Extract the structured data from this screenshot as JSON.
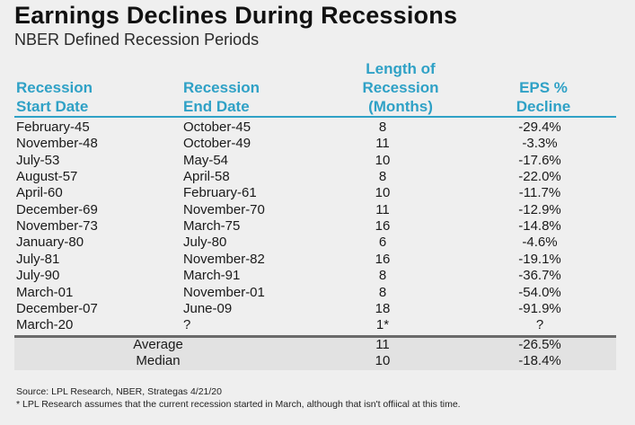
{
  "title": "Earnings Declines During Recessions",
  "subtitle": "NBER Defined Recession Periods",
  "headers": {
    "start": [
      "Recession",
      "Start Date"
    ],
    "end": [
      "Recession",
      "End Date"
    ],
    "length": [
      "Length of",
      "Recession",
      "(Months)"
    ],
    "eps": [
      "EPS %",
      "Decline"
    ]
  },
  "rows": [
    {
      "start": "February-45",
      "end": "October-45",
      "length": "8",
      "eps": "-29.4%"
    },
    {
      "start": "November-48",
      "end": "October-49",
      "length": "11",
      "eps": "-3.3%"
    },
    {
      "start": "July-53",
      "end": "May-54",
      "length": "10",
      "eps": "-17.6%"
    },
    {
      "start": "August-57",
      "end": "April-58",
      "length": "8",
      "eps": "-22.0%"
    },
    {
      "start": "April-60",
      "end": "February-61",
      "length": "10",
      "eps": "-11.7%"
    },
    {
      "start": "December-69",
      "end": "November-70",
      "length": "11",
      "eps": "-12.9%"
    },
    {
      "start": "November-73",
      "end": "March-75",
      "length": "16",
      "eps": "-14.8%"
    },
    {
      "start": "January-80",
      "end": "July-80",
      "length": "6",
      "eps": "-4.6%"
    },
    {
      "start": "July-81",
      "end": "November-82",
      "length": "16",
      "eps": "-19.1%"
    },
    {
      "start": "July-90",
      "end": "March-91",
      "length": "8",
      "eps": "-36.7%"
    },
    {
      "start": "March-01",
      "end": "November-01",
      "length": "8",
      "eps": "-54.0%"
    },
    {
      "start": "December-07",
      "end": "June-09",
      "length": "18",
      "eps": "-91.9%"
    },
    {
      "start": "March-20",
      "end": "?",
      "length": "1*",
      "eps": "?"
    }
  ],
  "summary": [
    {
      "label": "Average",
      "length": "11",
      "eps": "-26.5%"
    },
    {
      "label": "Median",
      "length": "10",
      "eps": "-18.4%"
    }
  ],
  "source": "Source: LPL Research, NBER, Strategas 4/21/20",
  "note": "* LPL Research assumes that the current recession started in March, although that isn't offiical at this time.",
  "colors": {
    "header": "#2fa1c6",
    "rule": "#6a6a6a",
    "background": "#efefef"
  }
}
